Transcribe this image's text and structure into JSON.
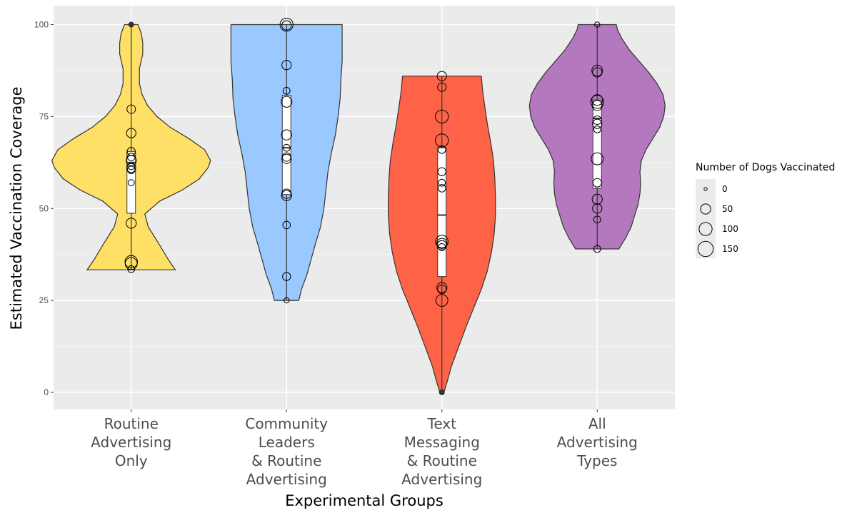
{
  "chart_data": {
    "type": "violin",
    "xlabel": "Experimental Groups",
    "ylabel": "Estimated Vaccination Coverage",
    "ylim": [
      -5,
      105
    ],
    "yticks": [
      0,
      25,
      50,
      75,
      100
    ],
    "grid": true,
    "legend": {
      "title": "Number of Dogs Vaccinated",
      "placement": "right",
      "entries": [
        {
          "label": "0",
          "value": 0
        },
        {
          "label": "50",
          "value": 50
        },
        {
          "label": "100",
          "value": 100
        },
        {
          "label": "150",
          "value": 150
        }
      ]
    },
    "groups": [
      {
        "label_lines": [
          "Routine",
          "Advertising",
          "Only"
        ],
        "color": "#FFE066",
        "box": {
          "q1": 48.7,
          "median": 62.5,
          "q3": 65.5
        },
        "whiskers": [
          33.3,
          100
        ],
        "violin": [
          [
            33.3,
            0.65
          ],
          [
            36,
            0.55
          ],
          [
            40,
            0.42
          ],
          [
            45,
            0.25
          ],
          [
            48.5,
            0.2
          ],
          [
            52,
            0.42
          ],
          [
            55,
            0.75
          ],
          [
            58,
            1.0
          ],
          [
            61,
            1.13
          ],
          [
            63,
            1.17
          ],
          [
            66,
            1.08
          ],
          [
            69,
            0.85
          ],
          [
            72,
            0.58
          ],
          [
            75,
            0.38
          ],
          [
            78,
            0.24
          ],
          [
            81,
            0.16
          ],
          [
            84,
            0.12
          ],
          [
            88,
            0.12
          ],
          [
            92,
            0.17
          ],
          [
            95,
            0.17
          ],
          [
            97.5,
            0.15
          ],
          [
            100,
            0.1
          ]
        ],
        "points": [
          {
            "y": 100,
            "dogs": 0
          },
          {
            "y": 77,
            "dogs": 30
          },
          {
            "y": 70.5,
            "dogs": 40
          },
          {
            "y": 65.5,
            "dogs": 25
          },
          {
            "y": 64,
            "dogs": 20
          },
          {
            "y": 63,
            "dogs": 50
          },
          {
            "y": 61.5,
            "dogs": 15
          },
          {
            "y": 61,
            "dogs": 35
          },
          {
            "y": 60.5,
            "dogs": 20
          },
          {
            "y": 57,
            "dogs": 10
          },
          {
            "y": 46,
            "dogs": 50
          },
          {
            "y": 35.5,
            "dogs": 90
          },
          {
            "y": 35,
            "dogs": 80
          },
          {
            "y": 33.5,
            "dogs": 15
          }
        ]
      },
      {
        "label_lines": [
          "Community",
          "Leaders",
          "& Routine",
          "Advertising"
        ],
        "color": "#99C9FF",
        "box": {
          "q1": 53.8,
          "median": 66.5,
          "q3": 80.8
        },
        "whiskers": [
          25,
          100
        ],
        "violin": [
          [
            25,
            0.18
          ],
          [
            28,
            0.22
          ],
          [
            32,
            0.3
          ],
          [
            36,
            0.36
          ],
          [
            40,
            0.42
          ],
          [
            45,
            0.5
          ],
          [
            50,
            0.55
          ],
          [
            55,
            0.58
          ],
          [
            60,
            0.61
          ],
          [
            65,
            0.66
          ],
          [
            70,
            0.72
          ],
          [
            75,
            0.76
          ],
          [
            80,
            0.79
          ],
          [
            85,
            0.8
          ],
          [
            90,
            0.82
          ],
          [
            95,
            0.82
          ],
          [
            100,
            0.82
          ]
        ],
        "points": [
          {
            "y": 100,
            "dogs": 100
          },
          {
            "y": 99.8,
            "dogs": 40
          },
          {
            "y": 89,
            "dogs": 40
          },
          {
            "y": 82,
            "dogs": 15
          },
          {
            "y": 79,
            "dogs": 60
          },
          {
            "y": 70,
            "dogs": 50
          },
          {
            "y": 66.5,
            "dogs": 15
          },
          {
            "y": 64,
            "dogs": 30
          },
          {
            "y": 63.5,
            "dogs": 40
          },
          {
            "y": 54,
            "dogs": 40
          },
          {
            "y": 53.5,
            "dogs": 50
          },
          {
            "y": 45.5,
            "dogs": 20
          },
          {
            "y": 31.5,
            "dogs": 25
          },
          {
            "y": 25,
            "dogs": 5
          }
        ]
      },
      {
        "label_lines": [
          "Text",
          "Messaging",
          "& Routine",
          "Advertising"
        ],
        "color": "#FF6347",
        "box": {
          "q1": 31.5,
          "median": 48.2,
          "q3": 66.5
        },
        "whiskers": [
          0,
          86
        ],
        "violin": [
          [
            0,
            0.03
          ],
          [
            3,
            0.08
          ],
          [
            7,
            0.14
          ],
          [
            12,
            0.24
          ],
          [
            18,
            0.36
          ],
          [
            23,
            0.47
          ],
          [
            28,
            0.58
          ],
          [
            33,
            0.67
          ],
          [
            38,
            0.73
          ],
          [
            43,
            0.77
          ],
          [
            48,
            0.79
          ],
          [
            53,
            0.79
          ],
          [
            58,
            0.78
          ],
          [
            63,
            0.76
          ],
          [
            68,
            0.72
          ],
          [
            73,
            0.67
          ],
          [
            78,
            0.63
          ],
          [
            82,
            0.6
          ],
          [
            86,
            0.58
          ]
        ],
        "points": [
          {
            "y": 86,
            "dogs": 40
          },
          {
            "y": 83,
            "dogs": 30
          },
          {
            "y": 75,
            "dogs": 100
          },
          {
            "y": 68.5,
            "dogs": 100
          },
          {
            "y": 66,
            "dogs": 20
          },
          {
            "y": 60,
            "dogs": 25
          },
          {
            "y": 57,
            "dogs": 15
          },
          {
            "y": 55.5,
            "dogs": 20
          },
          {
            "y": 41,
            "dogs": 90
          },
          {
            "y": 40.5,
            "dogs": 50
          },
          {
            "y": 40,
            "dogs": 40
          },
          {
            "y": 39.5,
            "dogs": 15
          },
          {
            "y": 28.5,
            "dogs": 50
          },
          {
            "y": 28,
            "dogs": 30
          },
          {
            "y": 25,
            "dogs": 80
          },
          {
            "y": 0,
            "dogs": 0
          }
        ]
      },
      {
        "label_lines": [
          "All",
          "Advertising",
          "Types"
        ],
        "color": "#B478BE",
        "box": {
          "q1": 55.5,
          "median": 74.5,
          "q3": 79.5
        },
        "whiskers": [
          39,
          100
        ],
        "violin": [
          [
            39,
            0.32
          ],
          [
            42,
            0.42
          ],
          [
            45,
            0.5
          ],
          [
            48,
            0.55
          ],
          [
            51,
            0.6
          ],
          [
            54,
            0.63
          ],
          [
            57,
            0.64
          ],
          [
            60,
            0.63
          ],
          [
            63,
            0.65
          ],
          [
            66,
            0.72
          ],
          [
            69,
            0.82
          ],
          [
            72,
            0.92
          ],
          [
            75,
            0.98
          ],
          [
            78,
            1.0
          ],
          [
            81,
            0.97
          ],
          [
            84,
            0.88
          ],
          [
            87,
            0.76
          ],
          [
            90,
            0.62
          ],
          [
            93,
            0.48
          ],
          [
            96,
            0.37
          ],
          [
            98.5,
            0.3
          ],
          [
            100,
            0.28
          ]
        ],
        "points": [
          {
            "y": 100,
            "dogs": 5
          },
          {
            "y": 87.5,
            "dogs": 60
          },
          {
            "y": 87,
            "dogs": 40
          },
          {
            "y": 79.5,
            "dogs": 60
          },
          {
            "y": 79,
            "dogs": 100
          },
          {
            "y": 78,
            "dogs": 50
          },
          {
            "y": 74,
            "dogs": 30
          },
          {
            "y": 73,
            "dogs": 40
          },
          {
            "y": 71.5,
            "dogs": 15
          },
          {
            "y": 63.5,
            "dogs": 80
          },
          {
            "y": 57,
            "dogs": 30
          },
          {
            "y": 52.5,
            "dogs": 50
          },
          {
            "y": 50,
            "dogs": 40
          },
          {
            "y": 47,
            "dogs": 15
          },
          {
            "y": 39,
            "dogs": 15
          }
        ]
      }
    ]
  }
}
